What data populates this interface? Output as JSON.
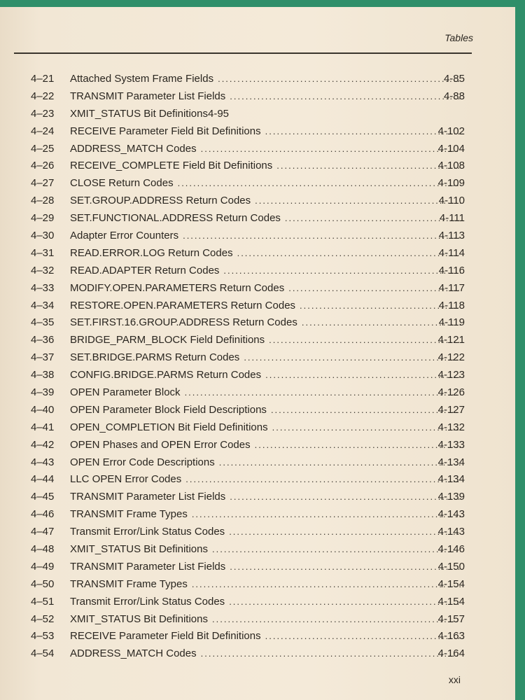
{
  "header": {
    "section": "Tables"
  },
  "entries": [
    {
      "num": "4–21",
      "title": "Attached System Frame Fields",
      "page": "4-85"
    },
    {
      "num": "4–22",
      "title": "TRANSMIT Parameter List Fields",
      "page": "4-88"
    },
    {
      "num": "4–23",
      "title": "XMIT_STATUS Bit Definitions4-95",
      "page": ""
    },
    {
      "num": "4–24",
      "title": "RECEIVE Parameter Field Bit Definitions",
      "page": "4-102"
    },
    {
      "num": "4–25",
      "title": "ADDRESS_MATCH Codes",
      "page": "4-104"
    },
    {
      "num": "4–26",
      "title": "RECEIVE_COMPLETE Field Bit Definitions",
      "page": "4-108"
    },
    {
      "num": "4–27",
      "title": "CLOSE Return Codes",
      "page": "4-109"
    },
    {
      "num": "4–28",
      "title": "SET.GROUP.ADDRESS Return Codes",
      "page": "4-110"
    },
    {
      "num": "4–29",
      "title": "SET.FUNCTIONAL.ADDRESS Return Codes",
      "page": "4-111"
    },
    {
      "num": "4–30",
      "title": "Adapter Error Counters",
      "page": "4-113"
    },
    {
      "num": "4–31",
      "title": "READ.ERROR.LOG Return Codes",
      "page": "4-114"
    },
    {
      "num": "4–32",
      "title": "READ.ADAPTER Return Codes",
      "page": "4-116"
    },
    {
      "num": "4–33",
      "title": "MODIFY.OPEN.PARAMETERS Return Codes",
      "page": "4-117"
    },
    {
      "num": "4–34",
      "title": "RESTORE.OPEN.PARAMETERS Return Codes",
      "page": "4-118"
    },
    {
      "num": "4–35",
      "title": "SET.FIRST.16.GROUP.ADDRESS Return Codes",
      "page": "4-119"
    },
    {
      "num": "4–36",
      "title": "BRIDGE_PARM_BLOCK Field Definitions",
      "page": "4-121"
    },
    {
      "num": "4–37",
      "title": "SET.BRIDGE.PARMS Return Codes",
      "page": "4-122"
    },
    {
      "num": "4–38",
      "title": "CONFIG.BRIDGE.PARMS Return Codes",
      "page": "4-123"
    },
    {
      "num": "4–39",
      "title": "OPEN Parameter Block",
      "page": "4-126"
    },
    {
      "num": "4–40",
      "title": "OPEN Parameter Block Field Descriptions",
      "page": "4-127"
    },
    {
      "num": "4–41",
      "title": "OPEN_COMPLETION Bit Field Definitions",
      "page": "4-132"
    },
    {
      "num": "4–42",
      "title": "OPEN Phases and OPEN Error Codes",
      "page": "4-133"
    },
    {
      "num": "4–43",
      "title": "OPEN Error Code Descriptions",
      "page": "4-134"
    },
    {
      "num": "4–44",
      "title": "LLC OPEN Error Codes",
      "page": "4-134"
    },
    {
      "num": "4–45",
      "title": "TRANSMIT Parameter List Fields",
      "page": "4-139"
    },
    {
      "num": "4–46",
      "title": "TRANSMIT Frame Types",
      "page": "4-143"
    },
    {
      "num": "4–47",
      "title": "Transmit Error/Link Status Codes",
      "page": "4-143"
    },
    {
      "num": "4–48",
      "title": "XMIT_STATUS Bit Definitions",
      "page": "4-146"
    },
    {
      "num": "4–49",
      "title": "TRANSMIT Parameter List Fields",
      "page": "4-150"
    },
    {
      "num": "4–50",
      "title": "TRANSMIT Frame Types",
      "page": "4-154"
    },
    {
      "num": "4–51",
      "title": "Transmit Error/Link Status Codes",
      "page": "4-154"
    },
    {
      "num": "4–52",
      "title": "XMIT_STATUS Bit Definitions",
      "page": "4-157"
    },
    {
      "num": "4–53",
      "title": "RECEIVE Parameter Field Bit Definitions",
      "page": "4-163"
    },
    {
      "num": "4–54",
      "title": "ADDRESS_MATCH Codes",
      "page": "4-164"
    }
  ],
  "footer": {
    "page_number": "xxi"
  }
}
